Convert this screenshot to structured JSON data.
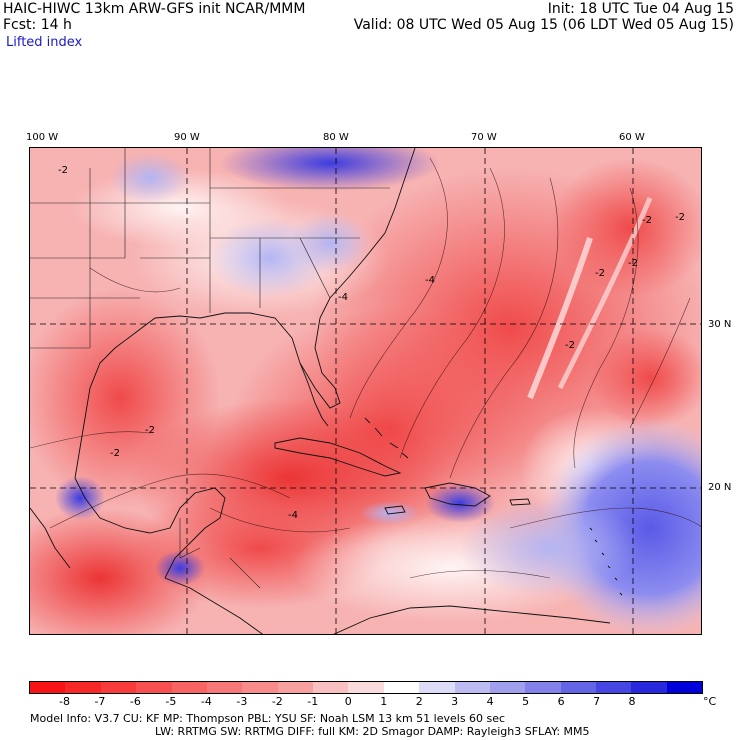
{
  "header": {
    "model_line": "HAIC-HIWC 13km ARW-GFS init   NCAR/MMM",
    "forecast_line": "Fcst:   14 h",
    "field_name": "Lifted index",
    "init_line": "Init: 18 UTC Tue 04 Aug 15",
    "valid_line": "Valid: 08 UTC Wed 05 Aug 15 (06 LDT Wed 05 Aug 15)"
  },
  "map": {
    "lon_labels": [
      "100 W",
      "90 W",
      "80 W",
      "70 W",
      "60 W"
    ],
    "lat_labels": [
      "30 N",
      "20 N"
    ],
    "contour_labels": [
      "-2",
      "-4",
      "-2",
      "-2",
      "-4",
      "-2",
      "-2",
      "-2",
      "-4",
      "-2",
      "-2"
    ]
  },
  "colorbar": {
    "tick_labels": [
      "-8",
      "-7",
      "-6",
      "-5",
      "-4",
      "-3",
      "-2",
      "-1",
      "0",
      "1",
      "2",
      "3",
      "4",
      "5",
      "6",
      "7",
      "8"
    ],
    "unit": "°C",
    "colors": [
      "#f81414",
      "#f82828",
      "#f83c3c",
      "#f85050",
      "#f86464",
      "#f87878",
      "#f88c8c",
      "#f8a0a0",
      "#f8c0c0",
      "#fadcdc",
      "#ffffff",
      "#dcdcf8",
      "#bcbcf2",
      "#a0a0ee",
      "#8282ea",
      "#6464e6",
      "#4646e2",
      "#2828dc",
      "#0000d8"
    ]
  },
  "footer": {
    "line1": "Model Info: V3.7     CU: KF       MP: Thompson      PBL: YSU       SF: Noah LSM      13 km    51 levels   60 sec",
    "line2": "LW: RRTMG     SW: RRTMG   DIFF: full    KM: 2D Smagor DAMP: Rayleigh3  SFLAY: MM5"
  }
}
